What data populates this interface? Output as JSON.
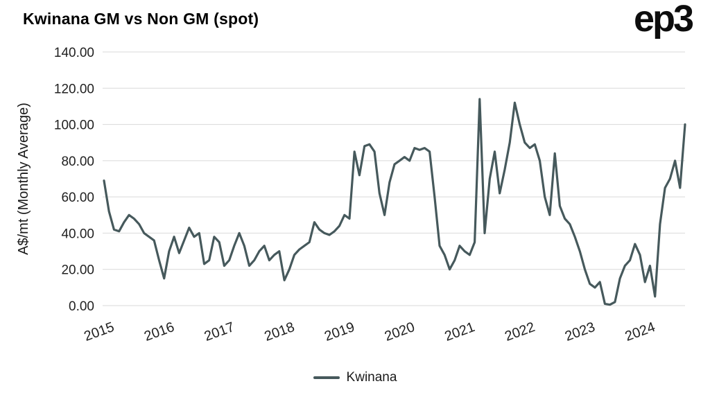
{
  "header": {
    "title": "Kwinana GM vs Non GM (spot)",
    "logo": "ep3"
  },
  "chart_data": {
    "type": "line",
    "title": "Kwinana GM vs Non GM (spot)",
    "xlabel": "",
    "ylabel": "A$/mt (Monthly Average)",
    "ylim": [
      0,
      140
    ],
    "y_ticks": [
      0,
      20,
      40,
      60,
      80,
      100,
      120,
      140
    ],
    "y_tick_labels": [
      "0.00",
      "20.00",
      "40.00",
      "60.00",
      "80.00",
      "100.00",
      "120.00",
      "140.00"
    ],
    "x_tick_labels": [
      "2015",
      "2016",
      "2017",
      "2018",
      "2019",
      "2020",
      "2021",
      "2022",
      "2023",
      "2024"
    ],
    "x_start": "2015-01",
    "x_frequency": "monthly",
    "grid": "horizontal",
    "grid_color": "#d9d9d9",
    "line_color": "#46595c",
    "legend": {
      "position": "bottom",
      "entries": [
        "Kwinana"
      ]
    },
    "series": [
      {
        "name": "Kwinana",
        "values": [
          69,
          52,
          42,
          41,
          46,
          50,
          48,
          45,
          40,
          38,
          36,
          25,
          15,
          30,
          38,
          29,
          36,
          43,
          38,
          40,
          23,
          25,
          38,
          35,
          22,
          25,
          33,
          40,
          33,
          22,
          25,
          30,
          33,
          25,
          28,
          30,
          14,
          20,
          28,
          31,
          33,
          35,
          46,
          42,
          40,
          39,
          41,
          44,
          50,
          48,
          85,
          72,
          88,
          89,
          85,
          62,
          50,
          68,
          78,
          80,
          82,
          80,
          87,
          86,
          87,
          85,
          60,
          33,
          28,
          20,
          25,
          33,
          30,
          28,
          35,
          114,
          40,
          70,
          85,
          62,
          75,
          90,
          112,
          100,
          90,
          87,
          89,
          80,
          60,
          50,
          84,
          55,
          48,
          45,
          38,
          30,
          20,
          12,
          10,
          13,
          1,
          0.5,
          2,
          15,
          22,
          25,
          34,
          28,
          13,
          22,
          5,
          45,
          65,
          70,
          80,
          65,
          100
        ]
      }
    ]
  }
}
